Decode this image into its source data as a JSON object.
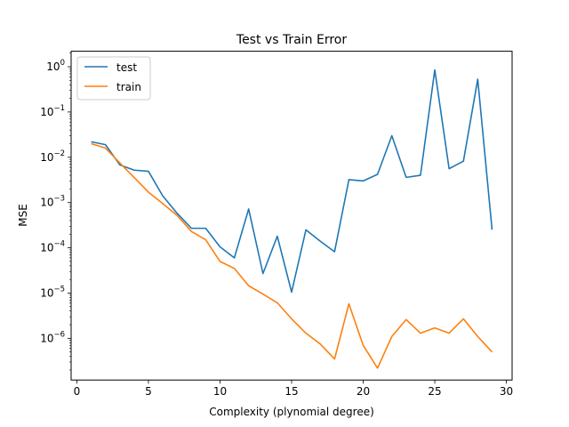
{
  "chart_data": {
    "type": "line",
    "title": "Test vs Train Error",
    "xlabel": "Complexity (plynomial degree)",
    "ylabel": "MSE",
    "yscale": "log",
    "xlim": [
      -0.4,
      30.4
    ],
    "ylim": [
      1.2e-07,
      2.2
    ],
    "x_ticks": [
      0,
      5,
      10,
      15,
      20,
      25,
      30
    ],
    "x_tick_labels": [
      "0",
      "5",
      "10",
      "15",
      "20",
      "25",
      "30"
    ],
    "y_ticks": [
      1e-06,
      1e-05,
      0.0001,
      0.001,
      0.01,
      0.1,
      1
    ],
    "y_tick_labels": [
      {
        "base": "10",
        "exp": "−6"
      },
      {
        "base": "10",
        "exp": "−5"
      },
      {
        "base": "10",
        "exp": "−4"
      },
      {
        "base": "10",
        "exp": "−3"
      },
      {
        "base": "10",
        "exp": "−2"
      },
      {
        "base": "10",
        "exp": "−1"
      },
      {
        "base": "10",
        "exp": "0"
      }
    ],
    "grid": false,
    "legend_position": "top-left",
    "x": [
      1,
      2,
      3,
      4,
      5,
      6,
      7,
      8,
      9,
      10,
      11,
      12,
      13,
      14,
      15,
      16,
      17,
      18,
      19,
      20,
      21,
      22,
      23,
      24,
      25,
      26,
      27,
      28,
      29
    ],
    "series": [
      {
        "name": "test",
        "color": "#1f77b4",
        "values": [
          0.022,
          0.019,
          0.0068,
          0.0052,
          0.0049,
          0.0014,
          0.00058,
          0.00027,
          0.00027,
          0.000105,
          6e-05,
          0.00072,
          2.7e-05,
          0.00018,
          1.05e-05,
          0.00025,
          0.00014,
          8.2e-05,
          0.0032,
          0.003,
          0.0042,
          0.03,
          0.0036,
          0.004,
          0.85,
          0.0056,
          0.0082,
          0.53,
          0.00025
        ]
      },
      {
        "name": "train",
        "color": "#ff7f0e",
        "values": [
          0.02,
          0.016,
          0.0075,
          0.0036,
          0.0017,
          0.00095,
          0.00052,
          0.00023,
          0.00015,
          5e-05,
          3.5e-05,
          1.45e-05,
          9.5e-06,
          6.1e-06,
          2.7e-06,
          1.3e-06,
          7.5e-07,
          3.5e-07,
          5.8e-06,
          7e-07,
          2.2e-07,
          1.1e-06,
          2.6e-06,
          1.3e-06,
          1.7e-06,
          1.3e-06,
          2.7e-06,
          1.1e-06,
          5e-07
        ]
      }
    ]
  }
}
